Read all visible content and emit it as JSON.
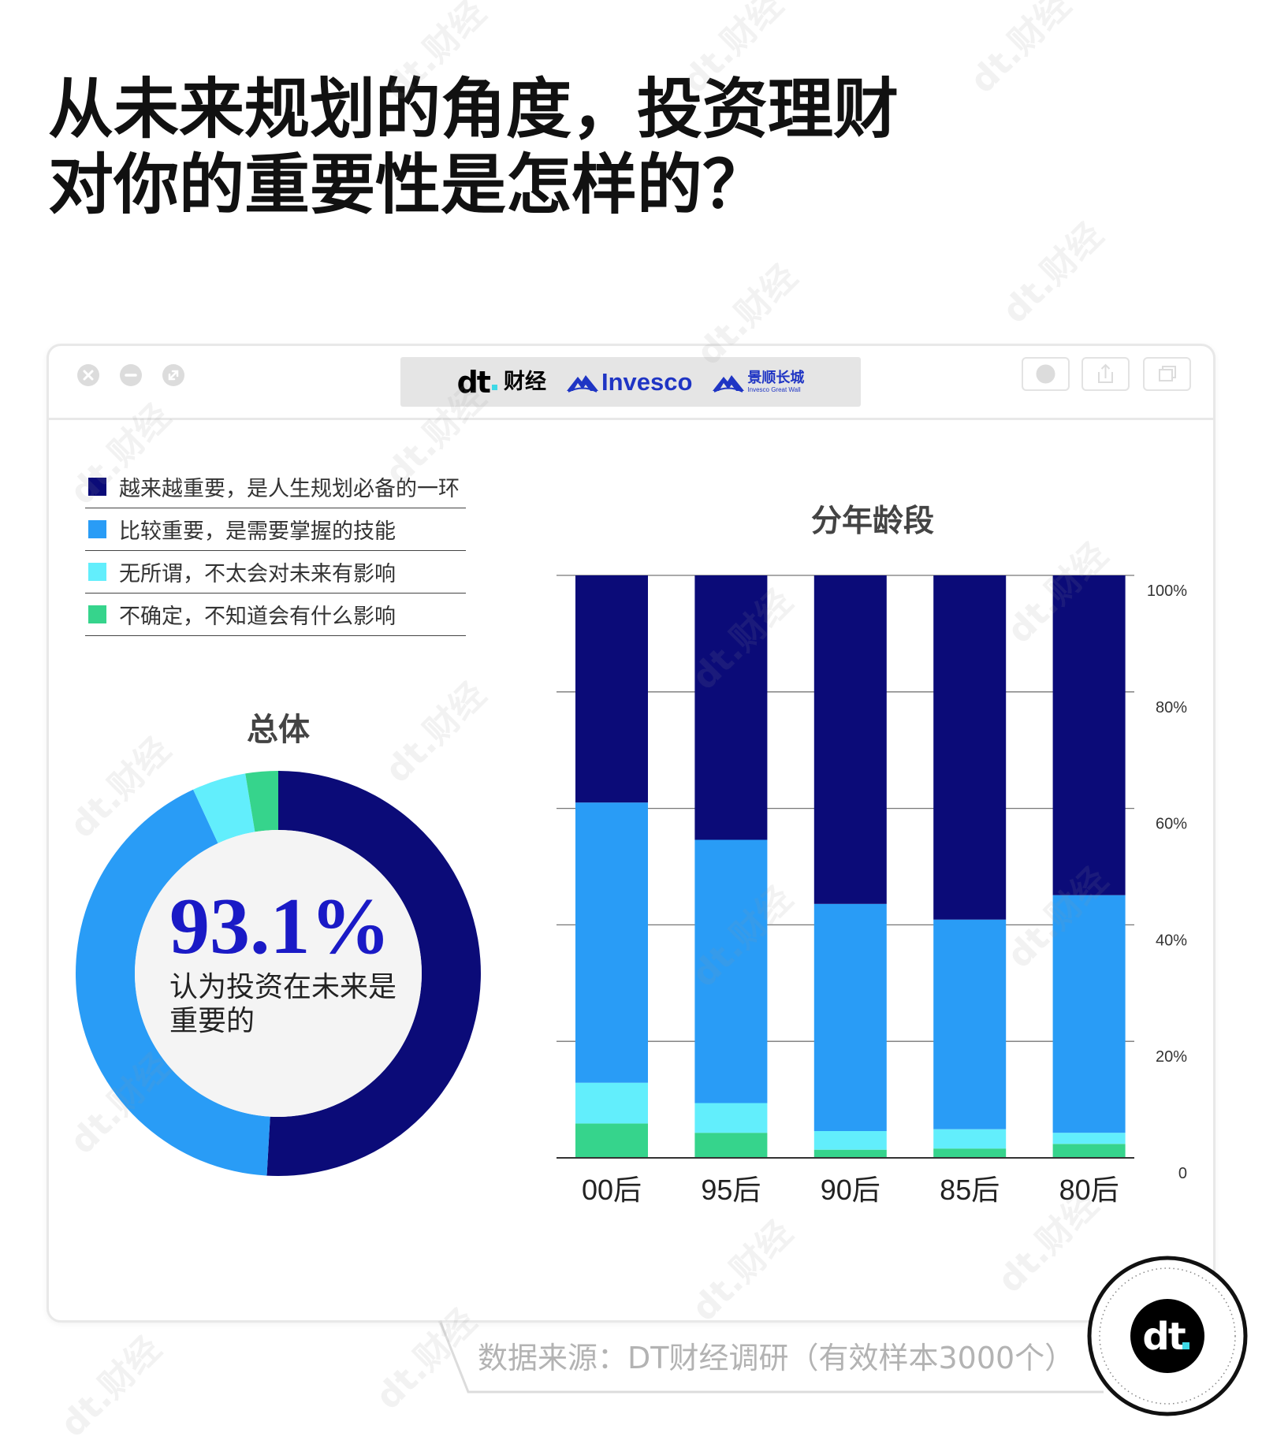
{
  "page": {
    "title_line1": "从未来规划的角度，投资理财",
    "title_line2": "对你的重要性是怎样的？",
    "watermark": "dt.财经"
  },
  "window": {
    "controls": [
      "close-icon",
      "minimize-icon",
      "expand-icon"
    ],
    "toolbar": [
      "record-icon",
      "share-icon",
      "window-icon"
    ],
    "logos": {
      "dt_mark": "dt",
      "dt_name": "财经",
      "invesco": "Invesco",
      "jingshun_cn": "景顺长城",
      "jingshun_en": "Invesco Great Wall"
    }
  },
  "chart_data": [
    {
      "type": "pie",
      "style": "donut",
      "title": "总体",
      "values": [
        50.9,
        42.2,
        4.3,
        2.6
      ],
      "colors": [
        "#0b0b78",
        "#299cf6",
        "#62eefc",
        "#36d48c"
      ],
      "center_value": "93.1%",
      "center_text_line1": "认为投资在未来是",
      "center_text_line2": "重要的"
    },
    {
      "type": "bar",
      "stacked": true,
      "title": "分年龄段",
      "categories": [
        "00后",
        "95后",
        "90后",
        "85后",
        "80后"
      ],
      "series": [
        {
          "name": "越来越重要，是人生规划必备的一环",
          "color": "#0b0b78",
          "values": [
            39.0,
            45.4,
            56.4,
            59.1,
            54.9
          ]
        },
        {
          "name": "比较重要，是需要掌握的技能",
          "color": "#299cf6",
          "values": [
            48.1,
            45.2,
            39.0,
            36.0,
            40.8
          ]
        },
        {
          "name": "无所谓，不太会对未来有影响",
          "color": "#62eefc",
          "values": [
            7.0,
            5.1,
            3.2,
            3.3,
            1.9
          ]
        },
        {
          "name": "不确定，不知道会有什么影响",
          "color": "#36d48c",
          "values": [
            5.9,
            4.3,
            1.4,
            1.6,
            2.4
          ]
        }
      ],
      "ylim": [
        0,
        100
      ],
      "yticks": [
        "0",
        "20%",
        "40%",
        "60%",
        "80%",
        "100%"
      ],
      "y_axis_side": "right",
      "grid": true
    }
  ],
  "source": "数据来源：DT财经调研（有效样本3000个）",
  "badge": {
    "mark": "dt"
  }
}
